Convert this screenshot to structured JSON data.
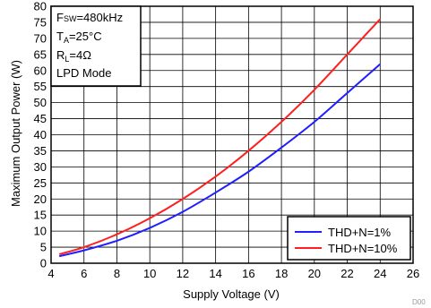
{
  "chart_data": {
    "type": "line",
    "xlabel": "Supply Voltage (V)",
    "ylabel": "Maximum Output Power (W)",
    "xlim": [
      4,
      26
    ],
    "ylim": [
      0,
      80
    ],
    "x_ticks": [
      4,
      6,
      8,
      10,
      12,
      14,
      16,
      18,
      20,
      22,
      24,
      26
    ],
    "y_ticks": [
      0,
      5,
      10,
      15,
      20,
      25,
      30,
      35,
      40,
      45,
      50,
      55,
      60,
      65,
      70,
      75,
      80
    ],
    "x_tick_labels": [
      "4",
      "6",
      "8",
      "10",
      "12",
      "14",
      "16",
      "18",
      "20",
      "22",
      "24",
      "26"
    ],
    "y_tick_labels": [
      "0",
      "5",
      "10",
      "15",
      "20",
      "25",
      "30",
      "35",
      "40",
      "45",
      "50",
      "55",
      "60",
      "65",
      "70",
      "75",
      "80"
    ],
    "grid": true,
    "legend_position": "bottom-right",
    "series": [
      {
        "name": "THD+N=1%",
        "color": "#1f1fff",
        "x": [
          4.5,
          6,
          8,
          10,
          12,
          14,
          16,
          18,
          20,
          22,
          24
        ],
        "y": [
          2.2,
          4,
          7,
          11,
          16,
          22,
          28.5,
          36,
          44,
          53,
          62
        ]
      },
      {
        "name": "THD+N=10%",
        "color": "#ff1f1f",
        "x": [
          4.5,
          6,
          8,
          10,
          12,
          14,
          16,
          18,
          20,
          22,
          24
        ],
        "y": [
          2.8,
          5,
          9,
          14,
          20,
          27,
          35,
          44,
          54,
          65,
          76
        ]
      }
    ],
    "annotations": {
      "line1_main": "F",
      "line1_sub": "SW",
      "line1_rest": "=480kHz",
      "line2_main": "T",
      "line2_sub": "A",
      "line2_rest": "=25°C",
      "line3_main": "R",
      "line3_sub": "L",
      "line3_rest": "=4Ω",
      "line4": "LPD Mode"
    },
    "figure_id": "D00"
  }
}
